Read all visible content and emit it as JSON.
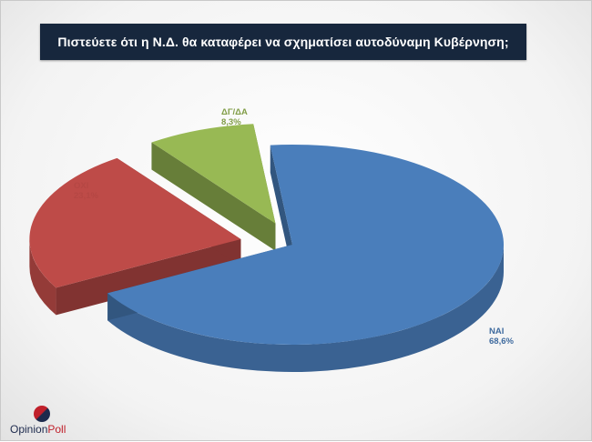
{
  "header": {
    "title": "Πιστεύετε ότι η Ν.Δ. θα καταφέρει να σχηματίσει αυτοδύναμη Κυβέρνηση;"
  },
  "chart_data": {
    "type": "pie",
    "title": "Πιστεύετε ότι η Ν.Δ. θα καταφέρει να σχηματίσει αυτοδύναμη Κυβέρνηση;",
    "categories": [
      "ΝΑΙ",
      "ΟΧΙ",
      "ΔΓ/ΔΑ"
    ],
    "values": [
      68.6,
      23.1,
      8.3
    ],
    "value_labels": [
      "68,6%",
      "23,1%",
      "8,3%"
    ],
    "colors": [
      "#4a7ebb",
      "#be4b48",
      "#98b954"
    ],
    "exploded": true,
    "three_d": true
  },
  "logo": {
    "part1": "Opinion",
    "part2": "Poll",
    "colors": [
      "#1d2a4d",
      "#c0202b"
    ]
  }
}
